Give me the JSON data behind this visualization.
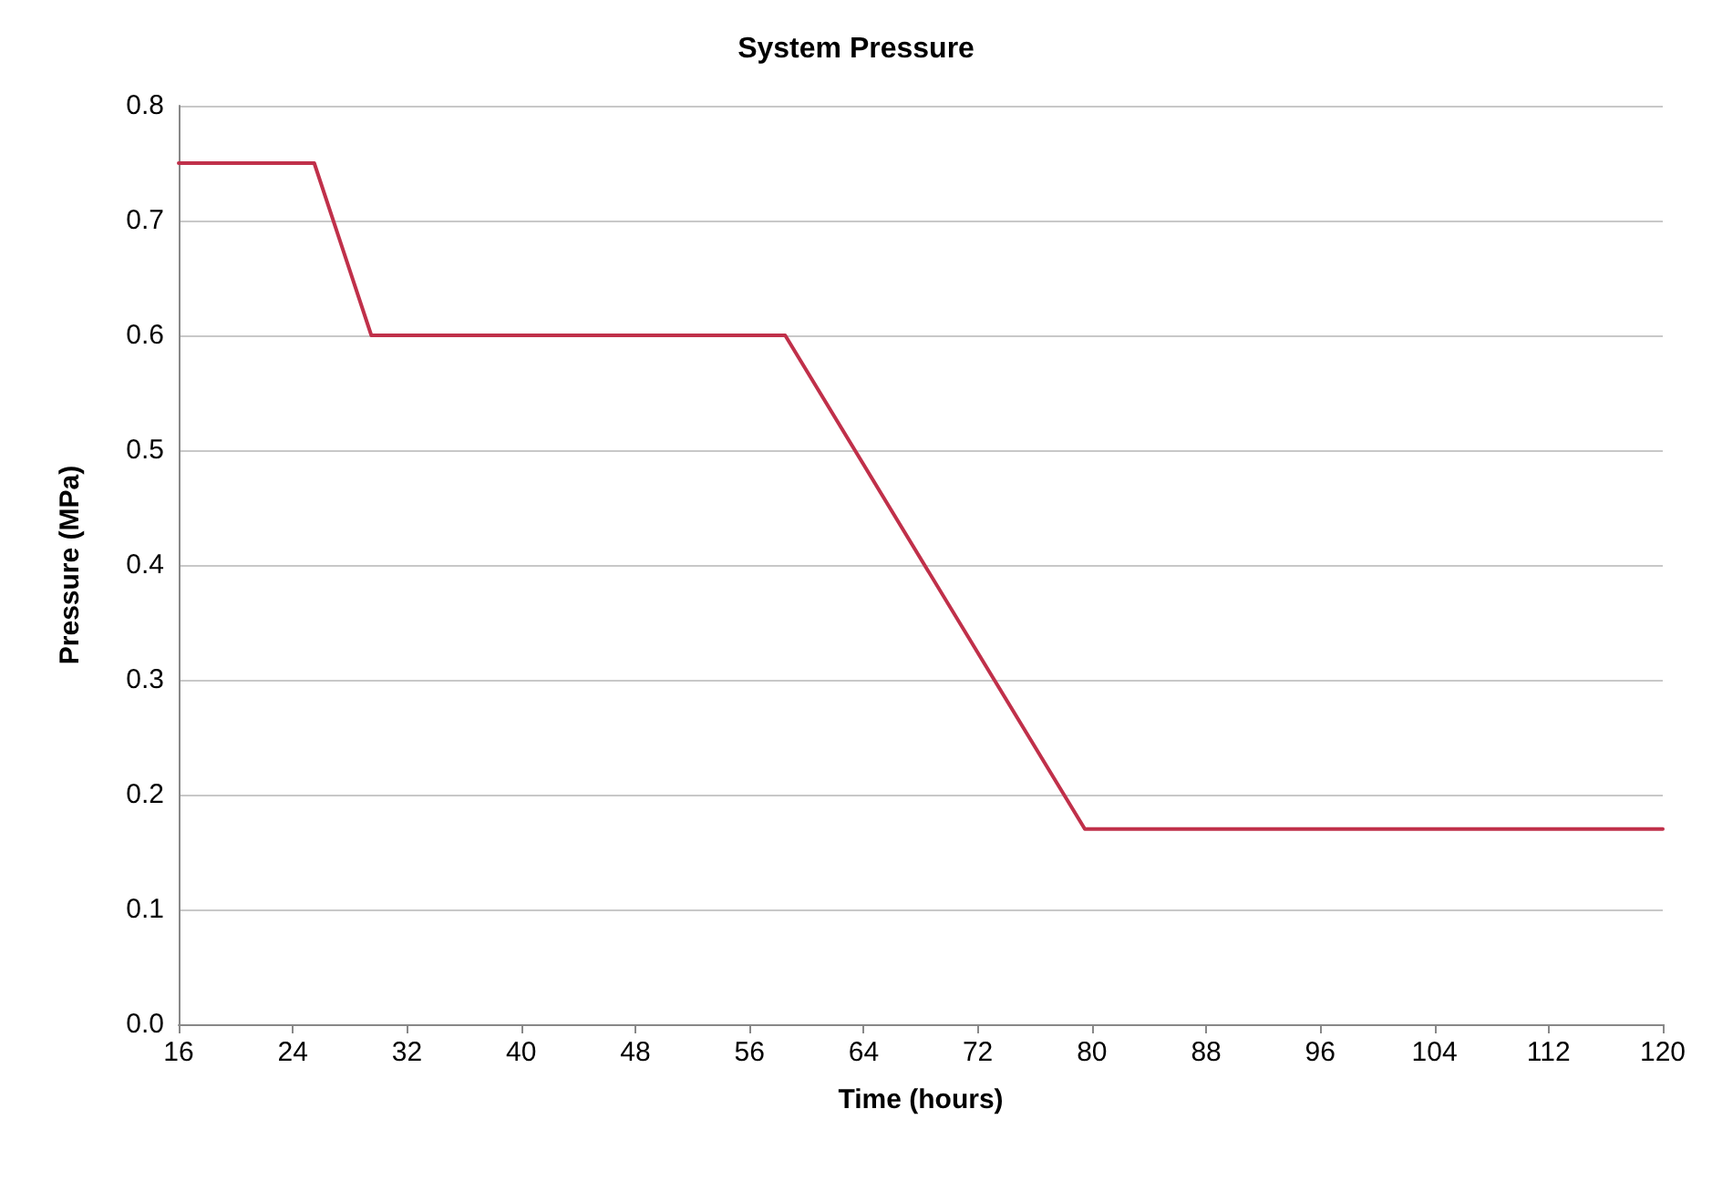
{
  "chart_data": {
    "type": "line",
    "title": "System Pressure",
    "xlabel": "Time (hours)",
    "ylabel": "Pressure (MPa)",
    "x": [
      16,
      25.5,
      29.5,
      58.5,
      79.5,
      120
    ],
    "series": [
      {
        "color": "#c0304a",
        "values": [
          0.75,
          0.75,
          0.6,
          0.6,
          0.17,
          0.17
        ]
      }
    ],
    "xlim": [
      16,
      120
    ],
    "xticks": [
      16,
      24,
      32,
      40,
      48,
      56,
      64,
      72,
      80,
      88,
      96,
      104,
      112,
      120
    ],
    "ylim": [
      0,
      0.8
    ],
    "yticks": [
      {
        "value": 0,
        "label": "0.0"
      },
      0.1,
      0.2,
      0.3,
      0.4,
      0.5,
      0.6,
      0.7,
      0.8
    ],
    "grid": "y",
    "marker": "none",
    "line_style": "solid"
  }
}
